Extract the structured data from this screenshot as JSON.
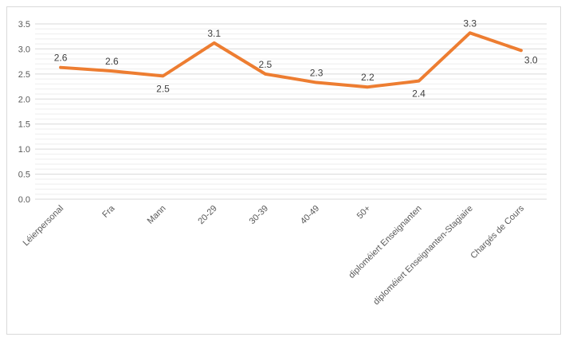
{
  "chart_data": {
    "type": "line",
    "title": "",
    "xlabel": "",
    "ylabel": "",
    "categories": [
      "Léierpersonal",
      "Fra",
      "Mann",
      "20-29",
      "30-39",
      "40-49",
      "50+",
      "diploméiert Enseignanten",
      "diploméiert Enseignanten-Stagiaire",
      "Chargés de Cours"
    ],
    "series": [
      {
        "values": [
          2.63,
          2.56,
          2.46,
          3.12,
          2.5,
          2.33,
          2.24,
          2.36,
          3.32,
          2.97
        ],
        "labels": [
          "2.6",
          "2.6",
          "2.5",
          "3.1",
          "2.5",
          "2.3",
          "2.2",
          "2.4",
          "3.3",
          "3.0"
        ],
        "color": "#ED7D31"
      }
    ],
    "ylim": [
      0,
      3.5
    ],
    "yticks": [
      "0.0",
      "0.5",
      "1.0",
      "1.5",
      "2.0",
      "2.5",
      "3.0",
      "3.5"
    ],
    "grid": true,
    "legend": "none"
  }
}
